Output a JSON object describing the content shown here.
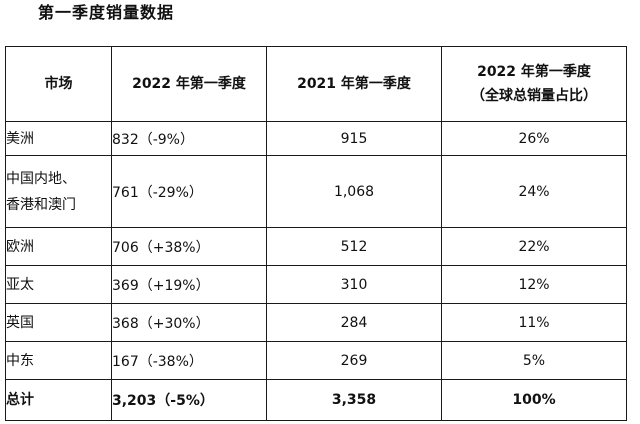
{
  "title": "第一季度销量数据",
  "table": {
    "headers": {
      "market": "市场",
      "q1_2022": "2022 年第一季度",
      "q1_2021": "2021 年第一季度",
      "share_line1": "2022 年第一季度",
      "share_line2": "（全球总销量占比）"
    },
    "rows": [
      {
        "market": "美洲",
        "q1_2022": "832（-9%）",
        "q1_2021": "915",
        "share": "26%"
      },
      {
        "market_line1": "中国内地、",
        "market_line2": "香港和澳门",
        "q1_2022": "761（-29%）",
        "q1_2021": "1,068",
        "share": "24%"
      },
      {
        "market": "欧洲",
        "q1_2022": "706（+38%）",
        "q1_2021": "512",
        "share": "22%"
      },
      {
        "market": "亚太",
        "q1_2022": "369（+19%）",
        "q1_2021": "310",
        "share": "12%"
      },
      {
        "market": "英国",
        "q1_2022": "368（+30%）",
        "q1_2021": "284",
        "share": "11%"
      },
      {
        "market": "中东",
        "q1_2022": "167（-38%）",
        "q1_2021": "269",
        "share": "5%"
      }
    ],
    "total": {
      "market": "总计",
      "q1_2022": "3,203（-5%）",
      "q1_2021": "3,358",
      "share": "100%"
    }
  }
}
